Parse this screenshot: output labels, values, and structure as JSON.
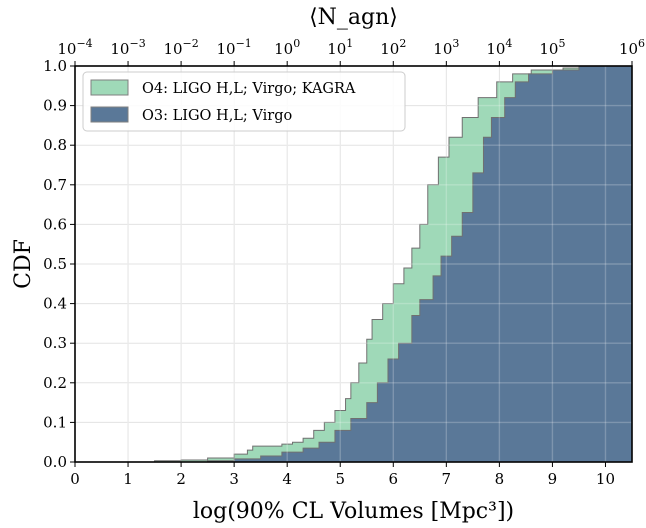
{
  "chart_data": {
    "type": "area",
    "xlabel": "log(90% CL Volumes [Mpc³])",
    "ylabel": "CDF",
    "top_xlabel": "⟨N_agn⟩",
    "xlim": [
      0,
      10.5
    ],
    "ylim": [
      0,
      1.0
    ],
    "x_ticks": [
      0,
      1,
      2,
      3,
      4,
      5,
      6,
      7,
      8,
      9,
      10
    ],
    "y_ticks": [
      0.0,
      0.1,
      0.2,
      0.3,
      0.4,
      0.5,
      0.6,
      0.7,
      0.8,
      0.9,
      1.0
    ],
    "top_ticks": [
      {
        "x": 0.0,
        "base": "10",
        "exp": "−4"
      },
      {
        "x": 1.0,
        "base": "10",
        "exp": "−3"
      },
      {
        "x": 2.0,
        "base": "10",
        "exp": "−2"
      },
      {
        "x": 3.0,
        "base": "10",
        "exp": "−1"
      },
      {
        "x": 4.0,
        "base": "10",
        "exp": "0"
      },
      {
        "x": 5.0,
        "base": "10",
        "exp": "1"
      },
      {
        "x": 6.0,
        "base": "10",
        "exp": "2"
      },
      {
        "x": 7.0,
        "base": "10",
        "exp": "3"
      },
      {
        "x": 8.0,
        "base": "10",
        "exp": "4"
      },
      {
        "x": 9.0,
        "base": "10",
        "exp": "5"
      },
      {
        "x": 10.5,
        "base": "10",
        "exp": "6"
      }
    ],
    "grid": true,
    "legend_position": "top-left",
    "series": [
      {
        "name": "O4: LIGO H,L; Virgo; KAGRA",
        "color": "#9fd9b8",
        "points": [
          [
            0,
            0
          ],
          [
            1.0,
            0.0
          ],
          [
            1.5,
            0.003
          ],
          [
            2.0,
            0.005
          ],
          [
            2.5,
            0.01
          ],
          [
            3.0,
            0.02
          ],
          [
            3.25,
            0.03
          ],
          [
            3.35,
            0.04
          ],
          [
            3.9,
            0.045
          ],
          [
            4.1,
            0.05
          ],
          [
            4.3,
            0.06
          ],
          [
            4.5,
            0.08
          ],
          [
            4.7,
            0.1
          ],
          [
            4.9,
            0.13
          ],
          [
            5.1,
            0.16
          ],
          [
            5.2,
            0.2
          ],
          [
            5.35,
            0.25
          ],
          [
            5.5,
            0.31
          ],
          [
            5.6,
            0.36
          ],
          [
            5.8,
            0.4
          ],
          [
            6.0,
            0.45
          ],
          [
            6.2,
            0.49
          ],
          [
            6.35,
            0.54
          ],
          [
            6.5,
            0.6
          ],
          [
            6.65,
            0.7
          ],
          [
            6.85,
            0.77
          ],
          [
            7.05,
            0.82
          ],
          [
            7.3,
            0.87
          ],
          [
            7.6,
            0.92
          ],
          [
            7.95,
            0.96
          ],
          [
            8.25,
            0.98
          ],
          [
            8.6,
            0.99
          ],
          [
            9.2,
            0.995
          ],
          [
            10.5,
            1.0
          ]
        ]
      },
      {
        "name": "O3: LIGO H,L; Virgo",
        "color": "#5a7898",
        "points": [
          [
            0,
            0
          ],
          [
            1.5,
            0.0
          ],
          [
            2.5,
            0.003
          ],
          [
            3.0,
            0.008
          ],
          [
            3.5,
            0.015
          ],
          [
            3.9,
            0.025
          ],
          [
            4.3,
            0.035
          ],
          [
            4.6,
            0.05
          ],
          [
            4.9,
            0.08
          ],
          [
            5.2,
            0.11
          ],
          [
            5.5,
            0.15
          ],
          [
            5.7,
            0.2
          ],
          [
            5.9,
            0.26
          ],
          [
            6.1,
            0.3
          ],
          [
            6.35,
            0.37
          ],
          [
            6.5,
            0.41
          ],
          [
            6.75,
            0.47
          ],
          [
            6.9,
            0.52
          ],
          [
            7.1,
            0.57
          ],
          [
            7.3,
            0.63
          ],
          [
            7.5,
            0.73
          ],
          [
            7.7,
            0.82
          ],
          [
            7.85,
            0.87
          ],
          [
            8.1,
            0.92
          ],
          [
            8.3,
            0.96
          ],
          [
            8.55,
            0.98
          ],
          [
            9.0,
            0.99
          ],
          [
            9.5,
            1.0
          ],
          [
            10.5,
            1.0
          ]
        ]
      }
    ]
  }
}
